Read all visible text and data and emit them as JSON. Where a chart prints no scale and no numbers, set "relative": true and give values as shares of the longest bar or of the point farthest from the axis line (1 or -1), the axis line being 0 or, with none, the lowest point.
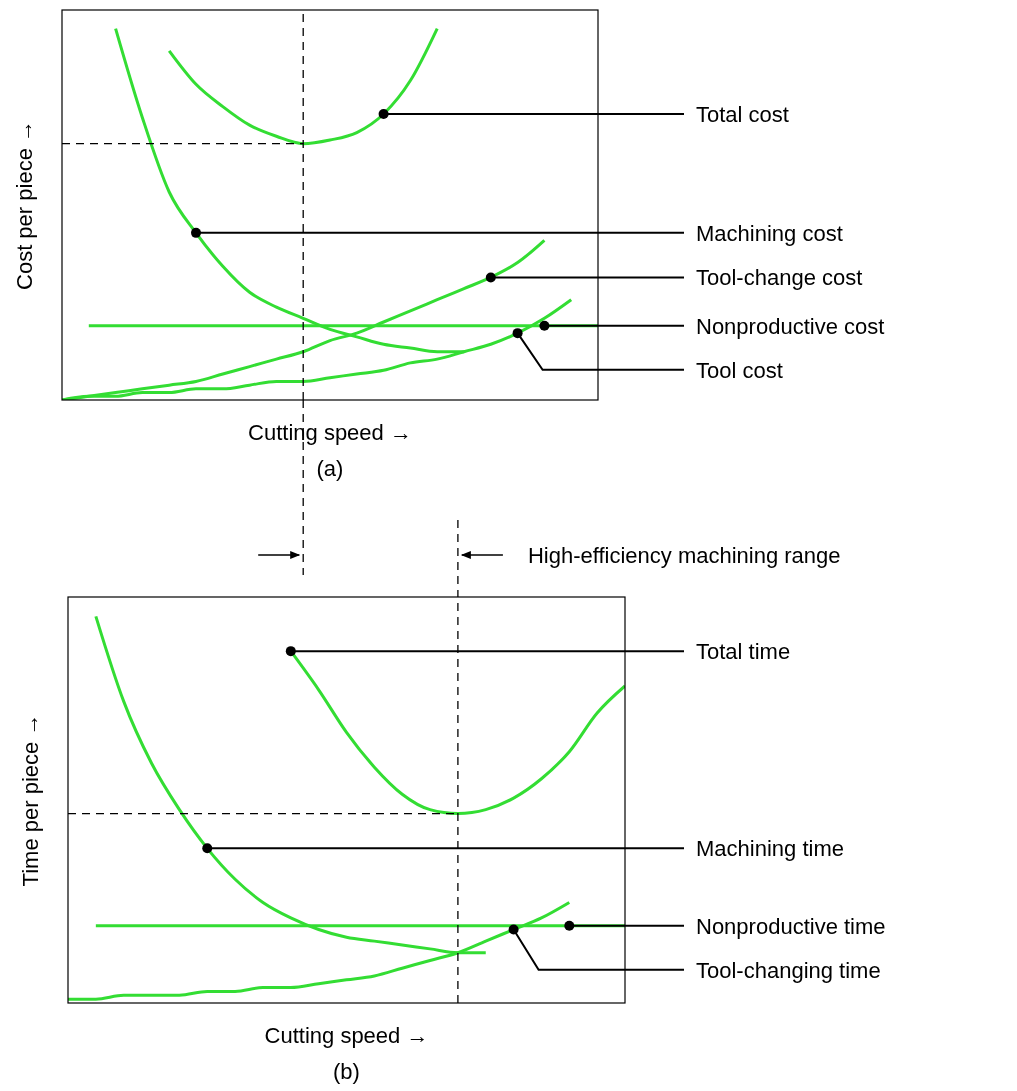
{
  "chart_data": [
    {
      "type": "line",
      "relative": true,
      "title": "(a)",
      "xlabel": "Cutting speed →",
      "ylabel": "Cost per piece →",
      "categories": [
        null,
        null,
        null,
        null,
        null,
        null,
        null,
        null,
        null,
        null,
        null,
        null,
        null,
        null,
        null,
        null,
        null,
        null,
        null,
        null,
        null
      ],
      "series": [
        {
          "name": "Total cost",
          "color": "#33dd33",
          "values": [
            null,
            null,
            null,
            null,
            0.94,
            0.85,
            0.79,
            0.74,
            0.71,
            0.69,
            0.7,
            0.72,
            0.77,
            0.86,
            1.0,
            null,
            null,
            null,
            null,
            null,
            null
          ]
        },
        {
          "name": "Machining cost",
          "color": "#33dd33",
          "values": [
            null,
            null,
            1.0,
            0.76,
            0.56,
            0.45,
            0.36,
            0.29,
            0.25,
            0.22,
            0.19,
            0.17,
            0.15,
            0.14,
            0.13,
            0.13,
            null,
            null,
            null,
            null,
            null
          ]
        },
        {
          "name": "Tool-change cost",
          "color": "#33dd33",
          "values": [
            0,
            0.01,
            0.02,
            0.03,
            0.04,
            0.05,
            0.07,
            0.09,
            0.11,
            0.13,
            0.16,
            0.18,
            0.21,
            0.24,
            0.27,
            0.3,
            0.33,
            0.37,
            0.43,
            null,
            null
          ]
        },
        {
          "name": "Nonproductive cost",
          "color": "#33dd33",
          "values": [
            null,
            0.2,
            0.2,
            0.2,
            0.2,
            0.2,
            0.2,
            0.2,
            0.2,
            0.2,
            0.2,
            0.2,
            0.2,
            0.2,
            0.2,
            0.2,
            0.2,
            0.2,
            0.2,
            0.2,
            0.2
          ]
        },
        {
          "name": "Tool cost",
          "color": "#33dd33",
          "values": [
            0,
            0.01,
            0.01,
            0.02,
            0.02,
            0.03,
            0.03,
            0.04,
            0.05,
            0.05,
            0.06,
            0.07,
            0.08,
            0.1,
            0.11,
            0.13,
            0.15,
            0.18,
            0.22,
            0.27,
            null
          ]
        }
      ],
      "ref_lines": [
        {
          "axis": "y",
          "value": 0.69,
          "color": "#000000",
          "line_style": "dashed"
        }
      ]
    },
    {
      "type": "line",
      "relative": true,
      "title": "(b)",
      "xlabel": "Cutting speed →",
      "ylabel": "Time per piece →",
      "annotations": [
        "High-efficiency machining range"
      ],
      "categories": [
        null,
        null,
        null,
        null,
        null,
        null,
        null,
        null,
        null,
        null,
        null,
        null,
        null,
        null,
        null,
        null,
        null,
        null,
        null,
        null,
        null
      ],
      "series": [
        {
          "name": "Total time",
          "color": "#33dd33",
          "values": [
            null,
            null,
            null,
            null,
            null,
            null,
            null,
            null,
            0.91,
            0.81,
            0.7,
            0.61,
            0.54,
            0.5,
            0.49,
            0.5,
            0.53,
            0.58,
            0.65,
            0.75,
            0.82
          ]
        },
        {
          "name": "Machining time",
          "color": "#33dd33",
          "values": [
            null,
            1.0,
            0.78,
            0.62,
            0.5,
            0.4,
            0.32,
            0.26,
            0.22,
            0.19,
            0.17,
            0.16,
            0.15,
            0.14,
            0.13,
            0.13,
            null,
            null,
            null,
            null,
            null
          ]
        },
        {
          "name": "Tool-changing time",
          "color": "#33dd33",
          "values": [
            0.01,
            0.01,
            0.02,
            0.02,
            0.02,
            0.03,
            0.03,
            0.04,
            0.04,
            0.05,
            0.06,
            0.07,
            0.09,
            0.11,
            0.13,
            0.16,
            0.19,
            0.22,
            0.26,
            null,
            null
          ]
        },
        {
          "name": "Nonproductive time",
          "color": "#33dd33",
          "values": [
            null,
            0.2,
            0.2,
            0.2,
            0.2,
            0.2,
            0.2,
            0.2,
            0.2,
            0.2,
            0.2,
            0.2,
            0.2,
            0.2,
            0.2,
            0.2,
            0.2,
            0.2,
            0.2,
            0.2,
            0.2
          ]
        }
      ],
      "ref_lines": [
        {
          "axis": "y",
          "value": 0.49,
          "color": "#000000",
          "line_style": "dashed"
        }
      ]
    }
  ]
}
